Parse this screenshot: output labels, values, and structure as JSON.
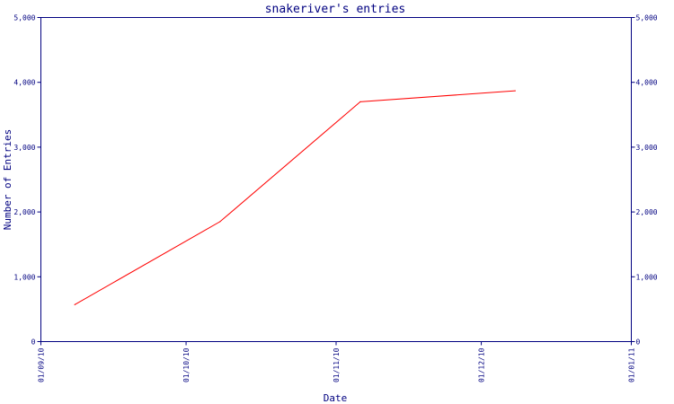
{
  "chart_data": {
    "type": "line",
    "title": "snakeriver's entries",
    "xlabel": "Date",
    "ylabel": "Number of Entries",
    "x_ticks": [
      "01/09/10",
      "01/10/10",
      "01/11/10",
      "01/12/10",
      "01/01/11"
    ],
    "y_ticks": [
      "0",
      "1,000",
      "2,000",
      "3,000",
      "4,000",
      "5,000"
    ],
    "xlim": [
      "2010-09-01",
      "2011-01-01"
    ],
    "ylim": [
      0,
      5000
    ],
    "grid": false,
    "legend": "none",
    "series": [
      {
        "color": "#ff0000",
        "points": [
          {
            "x": "2010-09-08",
            "y": 570
          },
          {
            "x": "2010-10-08",
            "y": 1850
          },
          {
            "x": "2010-11-06",
            "y": 3700
          },
          {
            "x": "2010-12-08",
            "y": 3870
          }
        ]
      }
    ],
    "colors": {
      "axis": "#000080",
      "line": "#ff0000",
      "background": "#ffffff"
    }
  }
}
